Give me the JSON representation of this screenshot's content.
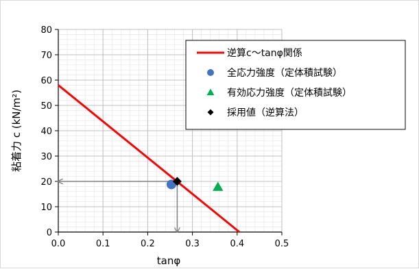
{
  "chart_data": {
    "type": "scatter",
    "xlabel": "tanφ",
    "ylabel": "粘着力 c (kN/m²)",
    "xlim": [
      0,
      0.5
    ],
    "ylim": [
      0,
      80
    ],
    "x_ticks": [
      "0.0",
      "0.1",
      "0.2",
      "0.3",
      "0.4",
      "0.5"
    ],
    "y_ticks": [
      "0",
      "10",
      "20",
      "30",
      "40",
      "50",
      "60",
      "70",
      "80"
    ],
    "grid": true,
    "minor_grid": true,
    "legend_position": "top-right",
    "series": [
      {
        "name": "逆算c〜tanφ関係",
        "kind": "line",
        "color": "#ff0000",
        "x": [
          0,
          0.405
        ],
        "y": [
          58,
          0
        ]
      },
      {
        "name": "全応力強度（定体積試験）",
        "kind": "marker",
        "marker": "circle",
        "color": "#4472c4",
        "x": [
          0.253
        ],
        "y": [
          18.8
        ]
      },
      {
        "name": "有効応力強度（定体積試験）",
        "kind": "marker",
        "marker": "triangle",
        "color": "#00b050",
        "x": [
          0.357
        ],
        "y": [
          17.8
        ]
      },
      {
        "name": "採用値（逆算法）",
        "kind": "marker",
        "marker": "diamond",
        "color": "#000000",
        "x": [
          0.266
        ],
        "y": [
          20
        ]
      }
    ],
    "annotations": [
      {
        "kind": "arrow",
        "color": "#7f7f7f",
        "from": [
          0.266,
          20
        ],
        "to": [
          0.0,
          20
        ]
      },
      {
        "kind": "arrow",
        "color": "#7f7f7f",
        "from": [
          0.266,
          20
        ],
        "to": [
          0.266,
          0
        ]
      }
    ]
  }
}
